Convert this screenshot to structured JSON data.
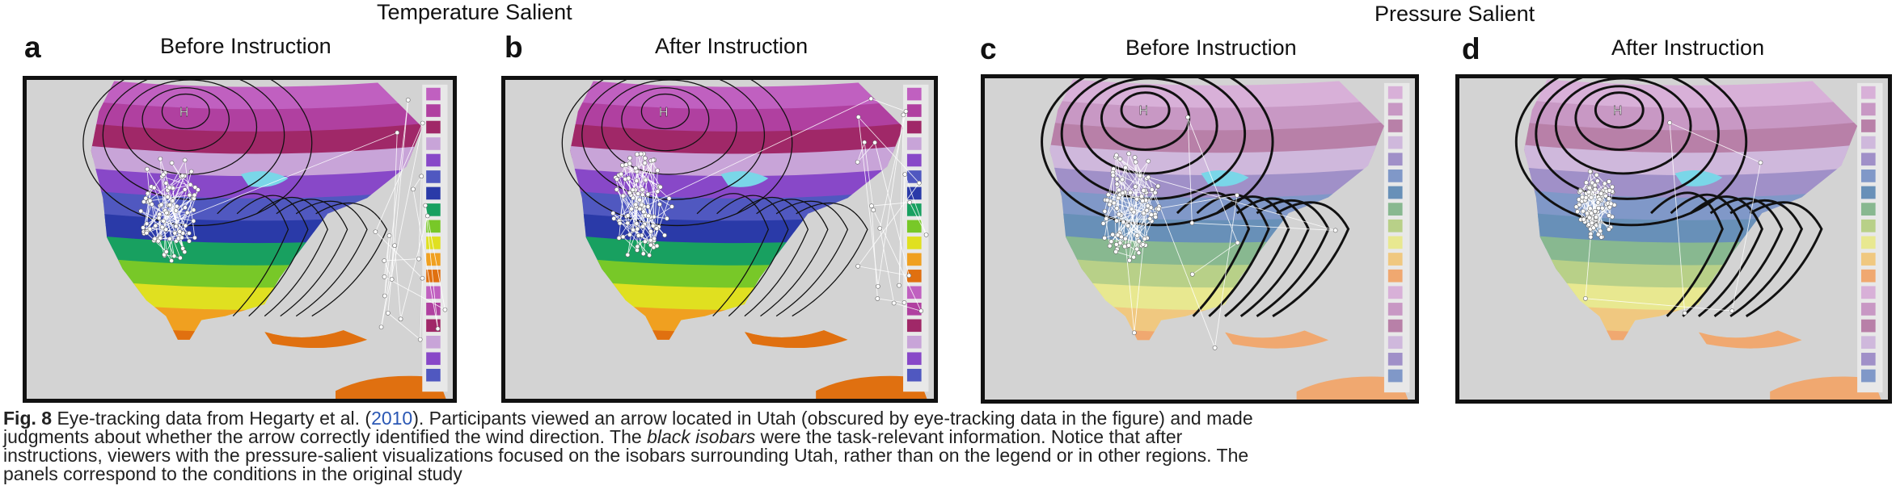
{
  "groups": {
    "temperature": "Temperature Salient",
    "pressure": "Pressure Salient"
  },
  "panels": [
    {
      "letter": "a",
      "title": "Before Instruction",
      "style": "temperature",
      "gaze": "before"
    },
    {
      "letter": "b",
      "title": "After Instruction",
      "style": "temperature",
      "gaze": "after"
    },
    {
      "letter": "c",
      "title": "Before Instruction",
      "style": "pressure",
      "gaze": "before"
    },
    {
      "letter": "d",
      "title": "After Instruction",
      "style": "pressure",
      "gaze": "after"
    }
  ],
  "isobar_label": "H",
  "caption": {
    "fig_label": "Fig. 8",
    "part1": " Eye-tracking data from Hegarty et al. (",
    "cite_year": "2010",
    "part2": "). Participants viewed an arrow located in Utah (obscured by eye-tracking data in the figure) and made judgments about whether the arrow correctly identified the wind direction. The ",
    "italic": "black isobars",
    "part3": " were the task-relevant information. Notice that after instructions, viewers with the pressure-salient visualizations focused on the isobars surrounding Utah, rather than on the legend or in other regions. The panels correspond to the conditions in the original study"
  },
  "colors": {
    "temperature_bands": [
      "#c060c0",
      "#b040a0",
      "#a02868",
      "#c8a4d8",
      "#8848c8",
      "#5058c0",
      "#2a3aa8",
      "#18a060",
      "#78c828",
      "#e0e020",
      "#f0a020",
      "#e07010"
    ],
    "pressure_bands": [
      "#d8b0d8",
      "#c898c4",
      "#b880a8",
      "#cfb8dc",
      "#a090c8",
      "#8098c8",
      "#6890b8",
      "#88b890",
      "#b8d088",
      "#e8e890",
      "#f0c880",
      "#f0a870"
    ],
    "background": "#d3d3d3",
    "water": "#d3d3d3"
  }
}
